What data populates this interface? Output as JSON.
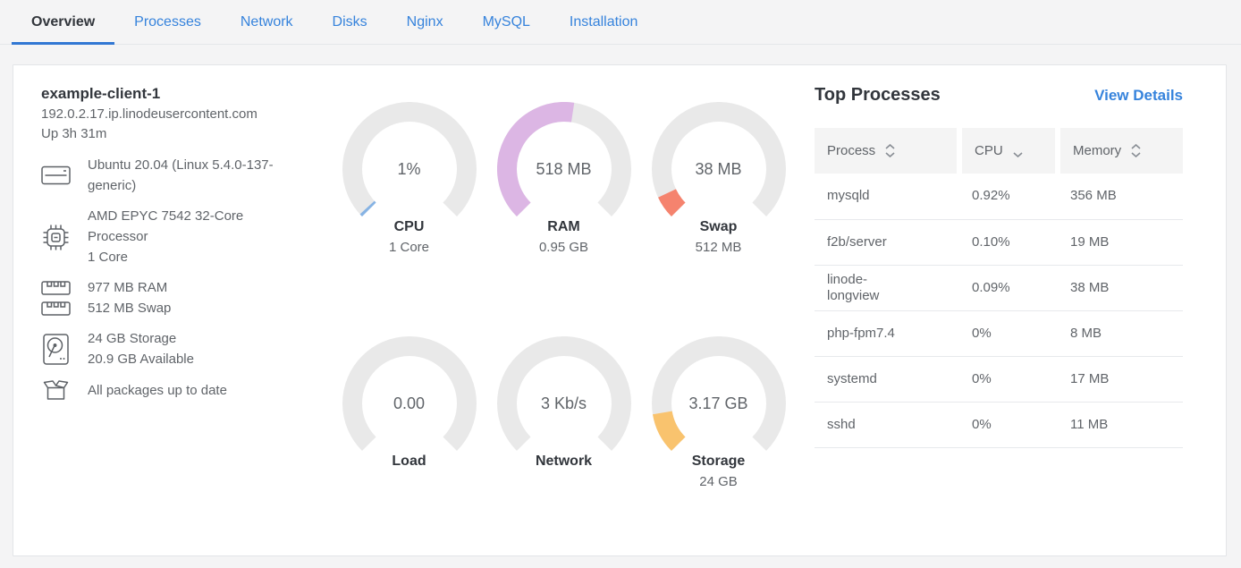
{
  "tabs": [
    {
      "label": "Overview",
      "active": true
    },
    {
      "label": "Processes",
      "active": false
    },
    {
      "label": "Network",
      "active": false
    },
    {
      "label": "Disks",
      "active": false
    },
    {
      "label": "Nginx",
      "active": false
    },
    {
      "label": "MySQL",
      "active": false
    },
    {
      "label": "Installation",
      "active": false
    }
  ],
  "host": {
    "name": "example-client-1",
    "domain": "192.0.2.17.ip.linodeusercontent.com",
    "uptime": "Up 3h 31m"
  },
  "specs": [
    {
      "icon": "os-icon",
      "lines": [
        "Ubuntu 20.04 (Linux 5.4.0-137-",
        "generic)"
      ]
    },
    {
      "icon": "cpu-icon",
      "lines": [
        "AMD EPYC 7542 32-Core",
        "Processor",
        "1 Core"
      ]
    },
    {
      "icon": "ram-icon",
      "lines": [
        "977 MB RAM",
        "512 MB Swap"
      ]
    },
    {
      "icon": "disk-icon",
      "lines": [
        "24 GB Storage",
        "20.9 GB Available"
      ]
    },
    {
      "icon": "package-icon",
      "lines": [
        "All packages up to date"
      ]
    }
  ],
  "gauges": [
    {
      "id": "cpu",
      "value": "1%",
      "label": "CPU",
      "sublabel": "1 Core",
      "fraction": 0.01,
      "color": "#86b3e4"
    },
    {
      "id": "ram",
      "value": "518 MB",
      "label": "RAM",
      "sublabel": "0.95 GB",
      "fraction": 0.532,
      "color": "#dcb6e4"
    },
    {
      "id": "swap",
      "value": "38 MB",
      "label": "Swap",
      "sublabel": "512 MB",
      "fraction": 0.074,
      "color": "#f5836e"
    },
    {
      "id": "load",
      "value": "0.00",
      "label": "Load",
      "sublabel": "",
      "fraction": 0,
      "color": "#86b3e4"
    },
    {
      "id": "network",
      "value": "3 Kb/s",
      "label": "Network",
      "sublabel": "",
      "fraction": 0,
      "color": "#86b3e4"
    },
    {
      "id": "storage",
      "value": "3.17 GB",
      "label": "Storage",
      "sublabel": "24 GB",
      "fraction": 0.132,
      "color": "#f9c36e"
    }
  ],
  "gauge_track_color": "#e9e9e9",
  "top_processes": {
    "title": "Top Processes",
    "view_details_label": "View Details",
    "columns": [
      {
        "label": "Process",
        "sort": "both"
      },
      {
        "label": "CPU",
        "sort": "desc"
      },
      {
        "label": "Memory",
        "sort": "both"
      }
    ],
    "rows": [
      {
        "process": "mysqld",
        "cpu": "0.92%",
        "memory": "356 MB"
      },
      {
        "process": "f2b/server",
        "cpu": "0.10%",
        "memory": "19 MB"
      },
      {
        "process": "linode-longview",
        "cpu": "0.09%",
        "memory": "38 MB"
      },
      {
        "process": "php-fpm7.4",
        "cpu": "0%",
        "memory": "8 MB"
      },
      {
        "process": "systemd",
        "cpu": "0%",
        "memory": "17 MB"
      },
      {
        "process": "sshd",
        "cpu": "0%",
        "memory": "11 MB"
      }
    ]
  },
  "colors": {
    "accent_blue": "#3683dc"
  }
}
